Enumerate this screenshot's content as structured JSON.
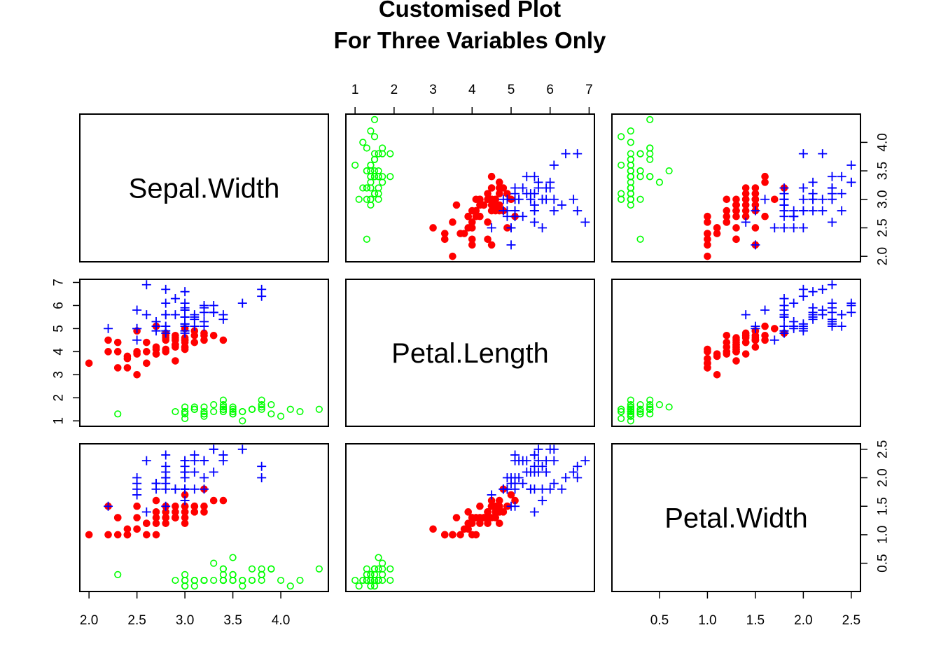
{
  "chart_data": {
    "type": "scatter",
    "title_lines": [
      "Customised Plot",
      "For Three Variables Only"
    ],
    "variables": [
      "Sepal.Width",
      "Petal.Length",
      "Petal.Width"
    ],
    "ranges": {
      "Sepal.Width": [
        2.0,
        4.4
      ],
      "Petal.Length": [
        1.0,
        6.9
      ],
      "Petal.Width": [
        0.1,
        2.5
      ]
    },
    "ticks": {
      "Sepal.Width": [
        {
          "v": 2.0,
          "l": "2.0"
        },
        {
          "v": 2.5,
          "l": "2.5"
        },
        {
          "v": 3.0,
          "l": "3.0"
        },
        {
          "v": 3.5,
          "l": "3.5"
        },
        {
          "v": 4.0,
          "l": "4.0"
        }
      ],
      "Petal.Length": [
        {
          "v": 1,
          "l": "1"
        },
        {
          "v": 2,
          "l": "2"
        },
        {
          "v": 3,
          "l": "3"
        },
        {
          "v": 4,
          "l": "4"
        },
        {
          "v": 5,
          "l": "5"
        },
        {
          "v": 6,
          "l": "6"
        },
        {
          "v": 7,
          "l": "7"
        }
      ],
      "Petal.Width": [
        {
          "v": 0.5,
          "l": "0.5"
        },
        {
          "v": 1.0,
          "l": "1.0"
        },
        {
          "v": 1.5,
          "l": "1.5"
        },
        {
          "v": 2.0,
          "l": "2.0"
        },
        {
          "v": 2.5,
          "l": "2.5"
        }
      ]
    },
    "groups": [
      {
        "marker": "circle-open",
        "color": "#00ff00",
        "points": [
          [
            3.5,
            1.4,
            0.2
          ],
          [
            3.0,
            1.4,
            0.2
          ],
          [
            3.2,
            1.3,
            0.2
          ],
          [
            3.1,
            1.5,
            0.2
          ],
          [
            3.6,
            1.4,
            0.2
          ],
          [
            3.9,
            1.7,
            0.4
          ],
          [
            3.4,
            1.4,
            0.3
          ],
          [
            3.4,
            1.5,
            0.2
          ],
          [
            2.9,
            1.4,
            0.2
          ],
          [
            3.1,
            1.5,
            0.1
          ],
          [
            3.7,
            1.5,
            0.2
          ],
          [
            3.4,
            1.6,
            0.2
          ],
          [
            3.0,
            1.4,
            0.1
          ],
          [
            3.0,
            1.1,
            0.1
          ],
          [
            4.0,
            1.2,
            0.2
          ],
          [
            4.4,
            1.5,
            0.4
          ],
          [
            3.9,
            1.3,
            0.4
          ],
          [
            3.5,
            1.4,
            0.3
          ],
          [
            3.8,
            1.7,
            0.3
          ],
          [
            3.8,
            1.5,
            0.3
          ],
          [
            3.4,
            1.7,
            0.2
          ],
          [
            3.7,
            1.5,
            0.4
          ],
          [
            3.6,
            1.0,
            0.2
          ],
          [
            3.3,
            1.7,
            0.5
          ],
          [
            3.4,
            1.9,
            0.2
          ],
          [
            3.0,
            1.6,
            0.2
          ],
          [
            3.4,
            1.6,
            0.4
          ],
          [
            3.5,
            1.5,
            0.2
          ],
          [
            3.4,
            1.4,
            0.2
          ],
          [
            3.2,
            1.6,
            0.2
          ],
          [
            3.1,
            1.6,
            0.2
          ],
          [
            3.4,
            1.5,
            0.4
          ],
          [
            4.1,
            1.5,
            0.1
          ],
          [
            4.2,
            1.4,
            0.2
          ],
          [
            3.1,
            1.5,
            0.2
          ],
          [
            3.2,
            1.2,
            0.2
          ],
          [
            3.5,
            1.3,
            0.2
          ],
          [
            3.6,
            1.4,
            0.1
          ],
          [
            3.0,
            1.3,
            0.2
          ],
          [
            3.4,
            1.5,
            0.2
          ],
          [
            3.5,
            1.3,
            0.3
          ],
          [
            2.3,
            1.3,
            0.3
          ],
          [
            3.2,
            1.3,
            0.2
          ],
          [
            3.5,
            1.6,
            0.6
          ],
          [
            3.8,
            1.9,
            0.4
          ],
          [
            3.0,
            1.4,
            0.3
          ],
          [
            3.8,
            1.6,
            0.2
          ],
          [
            3.2,
            1.4,
            0.2
          ],
          [
            3.7,
            1.5,
            0.2
          ],
          [
            3.3,
            1.4,
            0.2
          ]
        ]
      },
      {
        "marker": "circle-filled",
        "color": "#ff0000",
        "points": [
          [
            3.2,
            4.7,
            1.4
          ],
          [
            3.2,
            4.5,
            1.5
          ],
          [
            3.1,
            4.9,
            1.5
          ],
          [
            2.3,
            4.0,
            1.3
          ],
          [
            2.8,
            4.6,
            1.5
          ],
          [
            2.8,
            4.5,
            1.3
          ],
          [
            3.3,
            4.7,
            1.6
          ],
          [
            2.4,
            3.3,
            1.0
          ],
          [
            2.9,
            4.6,
            1.3
          ],
          [
            2.7,
            3.9,
            1.4
          ],
          [
            2.0,
            3.5,
            1.0
          ],
          [
            3.0,
            4.2,
            1.5
          ],
          [
            2.2,
            4.0,
            1.0
          ],
          [
            2.9,
            4.7,
            1.4
          ],
          [
            2.9,
            3.6,
            1.3
          ],
          [
            3.1,
            4.4,
            1.4
          ],
          [
            3.0,
            4.5,
            1.5
          ],
          [
            2.7,
            4.1,
            1.0
          ],
          [
            2.2,
            4.5,
            1.5
          ],
          [
            2.5,
            3.9,
            1.1
          ],
          [
            3.2,
            4.8,
            1.8
          ],
          [
            2.8,
            4.0,
            1.3
          ],
          [
            2.5,
            4.9,
            1.5
          ],
          [
            2.8,
            4.7,
            1.2
          ],
          [
            2.9,
            4.3,
            1.3
          ],
          [
            3.0,
            4.4,
            1.4
          ],
          [
            2.8,
            4.8,
            1.4
          ],
          [
            3.0,
            5.0,
            1.7
          ],
          [
            2.9,
            4.5,
            1.5
          ],
          [
            2.6,
            3.5,
            1.0
          ],
          [
            2.4,
            3.8,
            1.1
          ],
          [
            2.4,
            3.7,
            1.0
          ],
          [
            2.7,
            3.9,
            1.2
          ],
          [
            2.7,
            5.1,
            1.6
          ],
          [
            3.0,
            4.5,
            1.5
          ],
          [
            3.4,
            4.5,
            1.6
          ],
          [
            3.1,
            4.7,
            1.5
          ],
          [
            2.3,
            4.4,
            1.3
          ],
          [
            3.0,
            4.1,
            1.3
          ],
          [
            2.5,
            4.0,
            1.3
          ],
          [
            2.6,
            4.4,
            1.2
          ],
          [
            3.0,
            4.6,
            1.4
          ],
          [
            2.6,
            4.0,
            1.2
          ],
          [
            2.3,
            3.3,
            1.0
          ],
          [
            2.7,
            4.2,
            1.3
          ],
          [
            3.0,
            4.2,
            1.2
          ],
          [
            2.9,
            4.2,
            1.3
          ],
          [
            2.9,
            4.3,
            1.3
          ],
          [
            2.5,
            3.0,
            1.1
          ],
          [
            2.8,
            4.1,
            1.3
          ]
        ]
      },
      {
        "marker": "plus",
        "color": "#0000ff",
        "points": [
          [
            3.3,
            6.0,
            2.5
          ],
          [
            2.7,
            5.1,
            1.9
          ],
          [
            3.0,
            5.9,
            2.1
          ],
          [
            2.9,
            5.6,
            1.8
          ],
          [
            3.0,
            5.8,
            2.2
          ],
          [
            3.0,
            6.6,
            2.1
          ],
          [
            2.5,
            4.5,
            1.7
          ],
          [
            2.9,
            6.3,
            1.8
          ],
          [
            2.5,
            5.8,
            1.8
          ],
          [
            3.6,
            6.1,
            2.5
          ],
          [
            3.2,
            5.1,
            2.0
          ],
          [
            2.7,
            5.3,
            1.9
          ],
          [
            3.0,
            5.5,
            2.1
          ],
          [
            2.5,
            5.0,
            2.0
          ],
          [
            2.8,
            5.1,
            2.4
          ],
          [
            3.2,
            5.3,
            2.3
          ],
          [
            3.0,
            5.5,
            1.8
          ],
          [
            3.8,
            6.7,
            2.2
          ],
          [
            2.6,
            6.9,
            2.3
          ],
          [
            2.2,
            5.0,
            1.5
          ],
          [
            3.2,
            5.7,
            2.3
          ],
          [
            2.8,
            4.9,
            2.0
          ],
          [
            2.8,
            6.7,
            2.0
          ],
          [
            2.7,
            4.9,
            1.8
          ],
          [
            3.3,
            5.7,
            2.1
          ],
          [
            3.2,
            6.0,
            1.8
          ],
          [
            2.8,
            4.8,
            1.8
          ],
          [
            3.0,
            4.9,
            1.8
          ],
          [
            2.8,
            5.6,
            2.1
          ],
          [
            3.0,
            5.8,
            1.6
          ],
          [
            2.8,
            6.1,
            1.9
          ],
          [
            3.8,
            6.4,
            2.0
          ],
          [
            2.8,
            5.6,
            2.2
          ],
          [
            2.8,
            5.1,
            1.5
          ],
          [
            2.6,
            5.6,
            1.4
          ],
          [
            3.0,
            6.1,
            2.3
          ],
          [
            3.4,
            5.6,
            2.4
          ],
          [
            3.1,
            5.5,
            1.8
          ],
          [
            3.0,
            4.8,
            1.8
          ],
          [
            3.1,
            5.4,
            2.1
          ],
          [
            3.1,
            5.6,
            2.4
          ],
          [
            3.1,
            5.1,
            2.3
          ],
          [
            2.7,
            5.1,
            1.9
          ],
          [
            3.2,
            5.9,
            2.3
          ],
          [
            3.3,
            5.7,
            2.5
          ],
          [
            3.0,
            5.2,
            2.3
          ],
          [
            2.5,
            5.0,
            1.9
          ],
          [
            3.0,
            5.2,
            2.0
          ],
          [
            3.4,
            5.4,
            2.3
          ],
          [
            3.0,
            5.1,
            1.8
          ]
        ]
      }
    ]
  }
}
